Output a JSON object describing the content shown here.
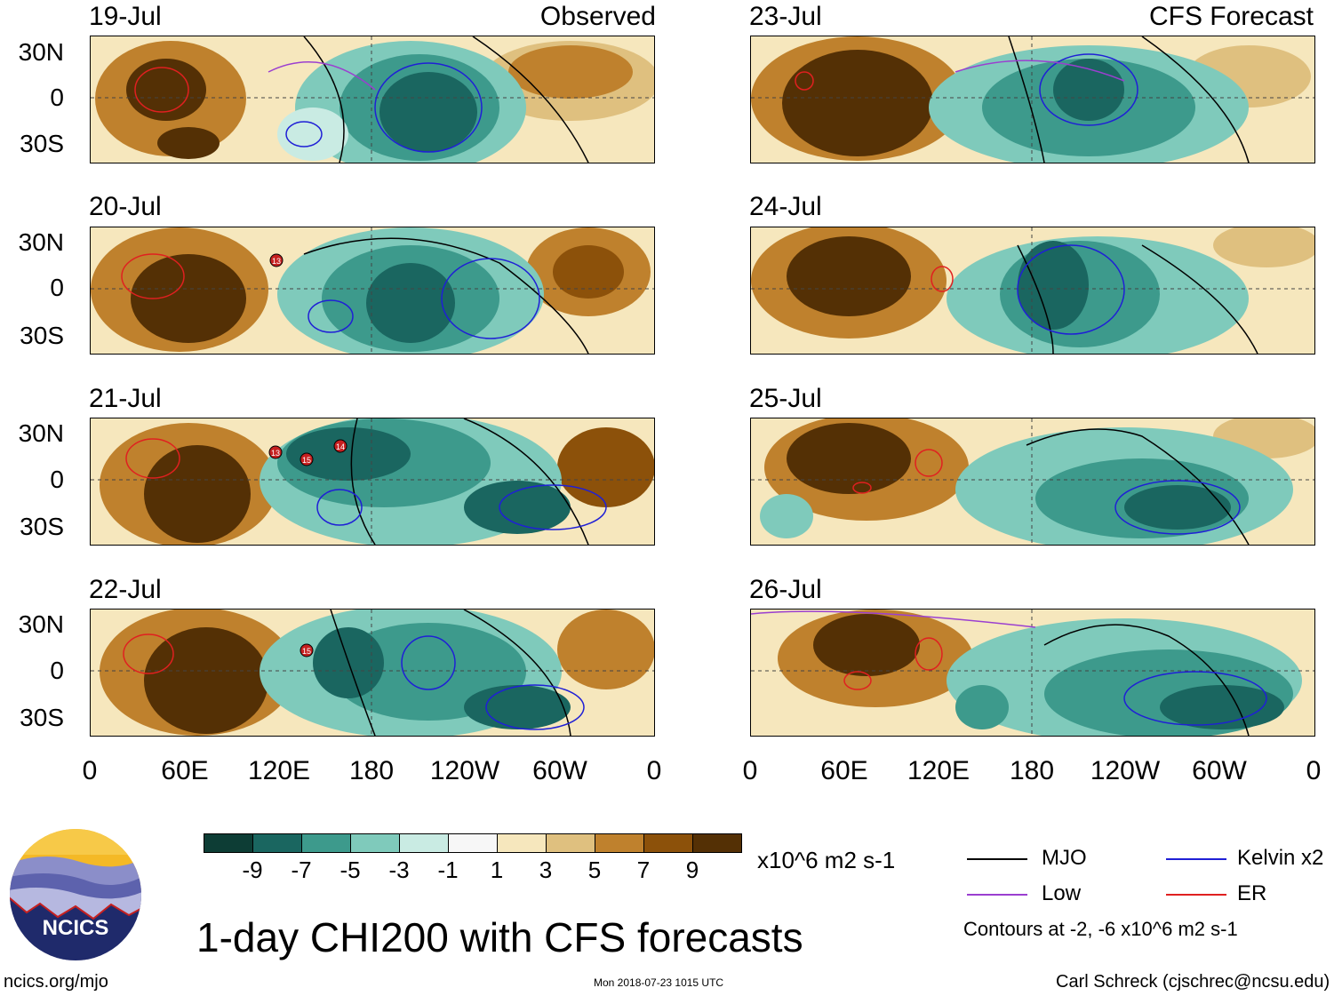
{
  "panels": [
    {
      "date": "19-Jul",
      "title": "Observed"
    },
    {
      "date": "20-Jul",
      "title": ""
    },
    {
      "date": "21-Jul",
      "title": ""
    },
    {
      "date": "22-Jul",
      "title": ""
    },
    {
      "date": "23-Jul",
      "title": "CFS Forecast"
    },
    {
      "date": "24-Jul",
      "title": ""
    },
    {
      "date": "25-Jul",
      "title": ""
    },
    {
      "date": "26-Jul",
      "title": ""
    }
  ],
  "lat_labels": [
    "30N",
    "0",
    "30S"
  ],
  "lon_labels": [
    "0",
    "60E",
    "120E",
    "180",
    "120W",
    "60W",
    "0"
  ],
  "colorbar": {
    "labels": [
      "-9",
      "-7",
      "-5",
      "-3",
      "-1",
      "1",
      "3",
      "5",
      "7",
      "9"
    ],
    "colors": [
      "#0d3d35",
      "#1a6660",
      "#3d9a8c",
      "#7fcabb",
      "#c9ebe3",
      "#f7f7f7",
      "#f6e7bd",
      "#dfc07f",
      "#bf812d",
      "#8c510a",
      "#543005"
    ],
    "units": "x10^6 m2 s-1"
  },
  "legend": {
    "items": [
      {
        "label": "MJO",
        "color": "#000000"
      },
      {
        "label": "Kelvin x2",
        "color": "#1f1fd6"
      },
      {
        "label": "Low",
        "color": "#9b3fd0"
      },
      {
        "label": "ER",
        "color": "#e02020"
      }
    ],
    "contours_note": "Contours at -2, -6 x10^6 m2 s-1"
  },
  "title": "1-day CHI200 with CFS forecasts",
  "logo": {
    "text": "NCICS"
  },
  "footer": {
    "url": "ncics.org/mjo",
    "timestamp": "Mon 2018-07-23 1015 UTC",
    "author": "Carl Schreck (cjschrec@ncsu.edu)"
  },
  "storm_labels": [
    "13",
    "13",
    "14",
    "15",
    "15"
  ]
}
